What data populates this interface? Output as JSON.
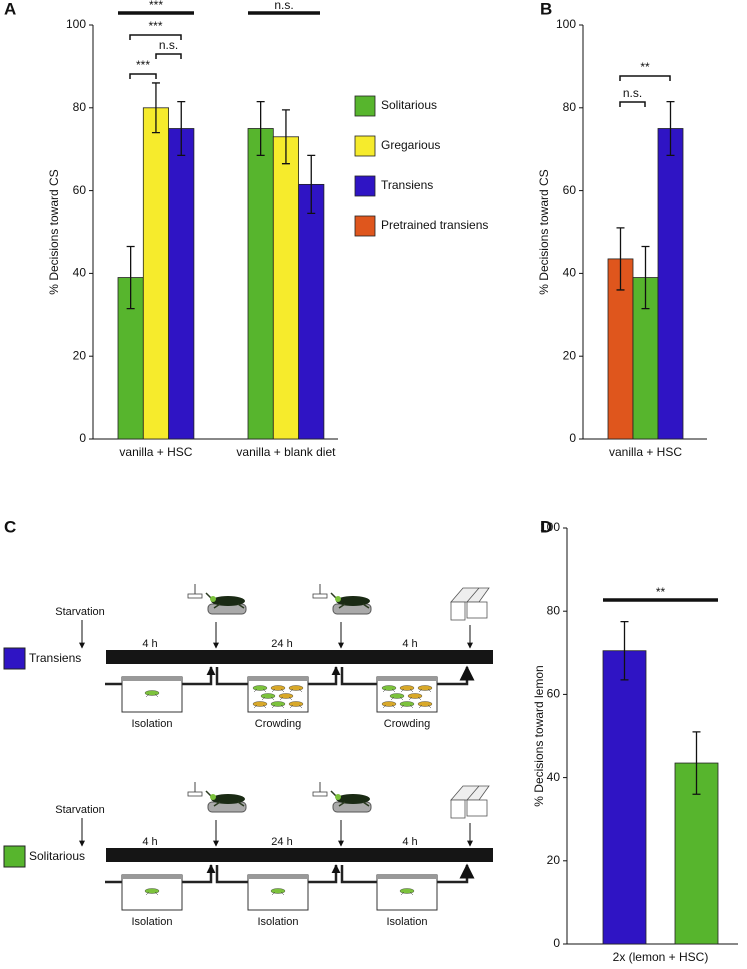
{
  "chart_data": [
    {
      "type": "bar",
      "panel": "A",
      "ylabel": "% Decisions toward CS",
      "categories": [
        "vanilla + HSC",
        "vanilla + blank diet"
      ],
      "series": [
        {
          "name": "Solitarious",
          "color": "#57b52d",
          "values": [
            39,
            75
          ],
          "errors": [
            7.5,
            6.5
          ]
        },
        {
          "name": "Gregarious",
          "color": "#f6eb2c",
          "values": [
            80,
            73
          ],
          "errors": [
            6,
            6.5
          ]
        },
        {
          "name": "Transiens",
          "color": "#2f14c4",
          "values": [
            75,
            61.5
          ],
          "errors": [
            6.5,
            7
          ]
        }
      ],
      "ylim": [
        0,
        100
      ],
      "yticks": [
        0,
        20,
        40,
        60,
        80,
        100
      ],
      "annotations": [
        "***",
        "***",
        "n.s.",
        "***",
        "n.s."
      ]
    },
    {
      "type": "bar",
      "panel": "B",
      "ylabel": "% Decisions toward CS",
      "categories": [
        "vanilla +  HSC"
      ],
      "series": [
        {
          "name": "Pretrained transiens",
          "color": "#df561d",
          "values": [
            43.5
          ],
          "errors": [
            7.5
          ]
        },
        {
          "color": "#57b52d",
          "values": [
            39
          ],
          "errors": [
            7.5
          ]
        },
        {
          "color": "#2f14c4",
          "values": [
            75
          ],
          "errors": [
            6.5
          ]
        }
      ],
      "ylim": [
        0,
        100
      ],
      "yticks": [
        0,
        20,
        40,
        60,
        80,
        100
      ],
      "annotations": [
        "n.s.",
        "**"
      ]
    },
    {
      "type": "bar",
      "panel": "D",
      "ylabel": "% Decisions toward lemon",
      "categories": [
        "2x (lemon +  HSC)"
      ],
      "series": [
        {
          "color": "#2f14c4",
          "values": [
            70.5
          ],
          "errors": [
            7
          ]
        },
        {
          "color": "#57b52d",
          "values": [
            43.5
          ],
          "errors": [
            7.5
          ]
        }
      ],
      "ylim": [
        0,
        100
      ],
      "yticks": [
        0,
        20,
        40,
        60,
        80,
        100
      ],
      "annotations": [
        "**"
      ]
    }
  ],
  "diagram": {
    "panel": "C",
    "rows": [
      {
        "label": "Transiens",
        "color": "#2f14c4",
        "start": "Starvation",
        "intervals": [
          "4 h",
          "24 h",
          "4 h"
        ],
        "boxes": [
          "Isolation",
          "Crowding",
          "Crowding"
        ]
      },
      {
        "label": "Solitarious",
        "color": "#57b52d",
        "start": "Starvation",
        "intervals": [
          "4 h",
          "24 h",
          "4 h"
        ],
        "boxes": [
          "Isolation",
          "Isolation",
          "Isolation"
        ]
      }
    ]
  }
}
